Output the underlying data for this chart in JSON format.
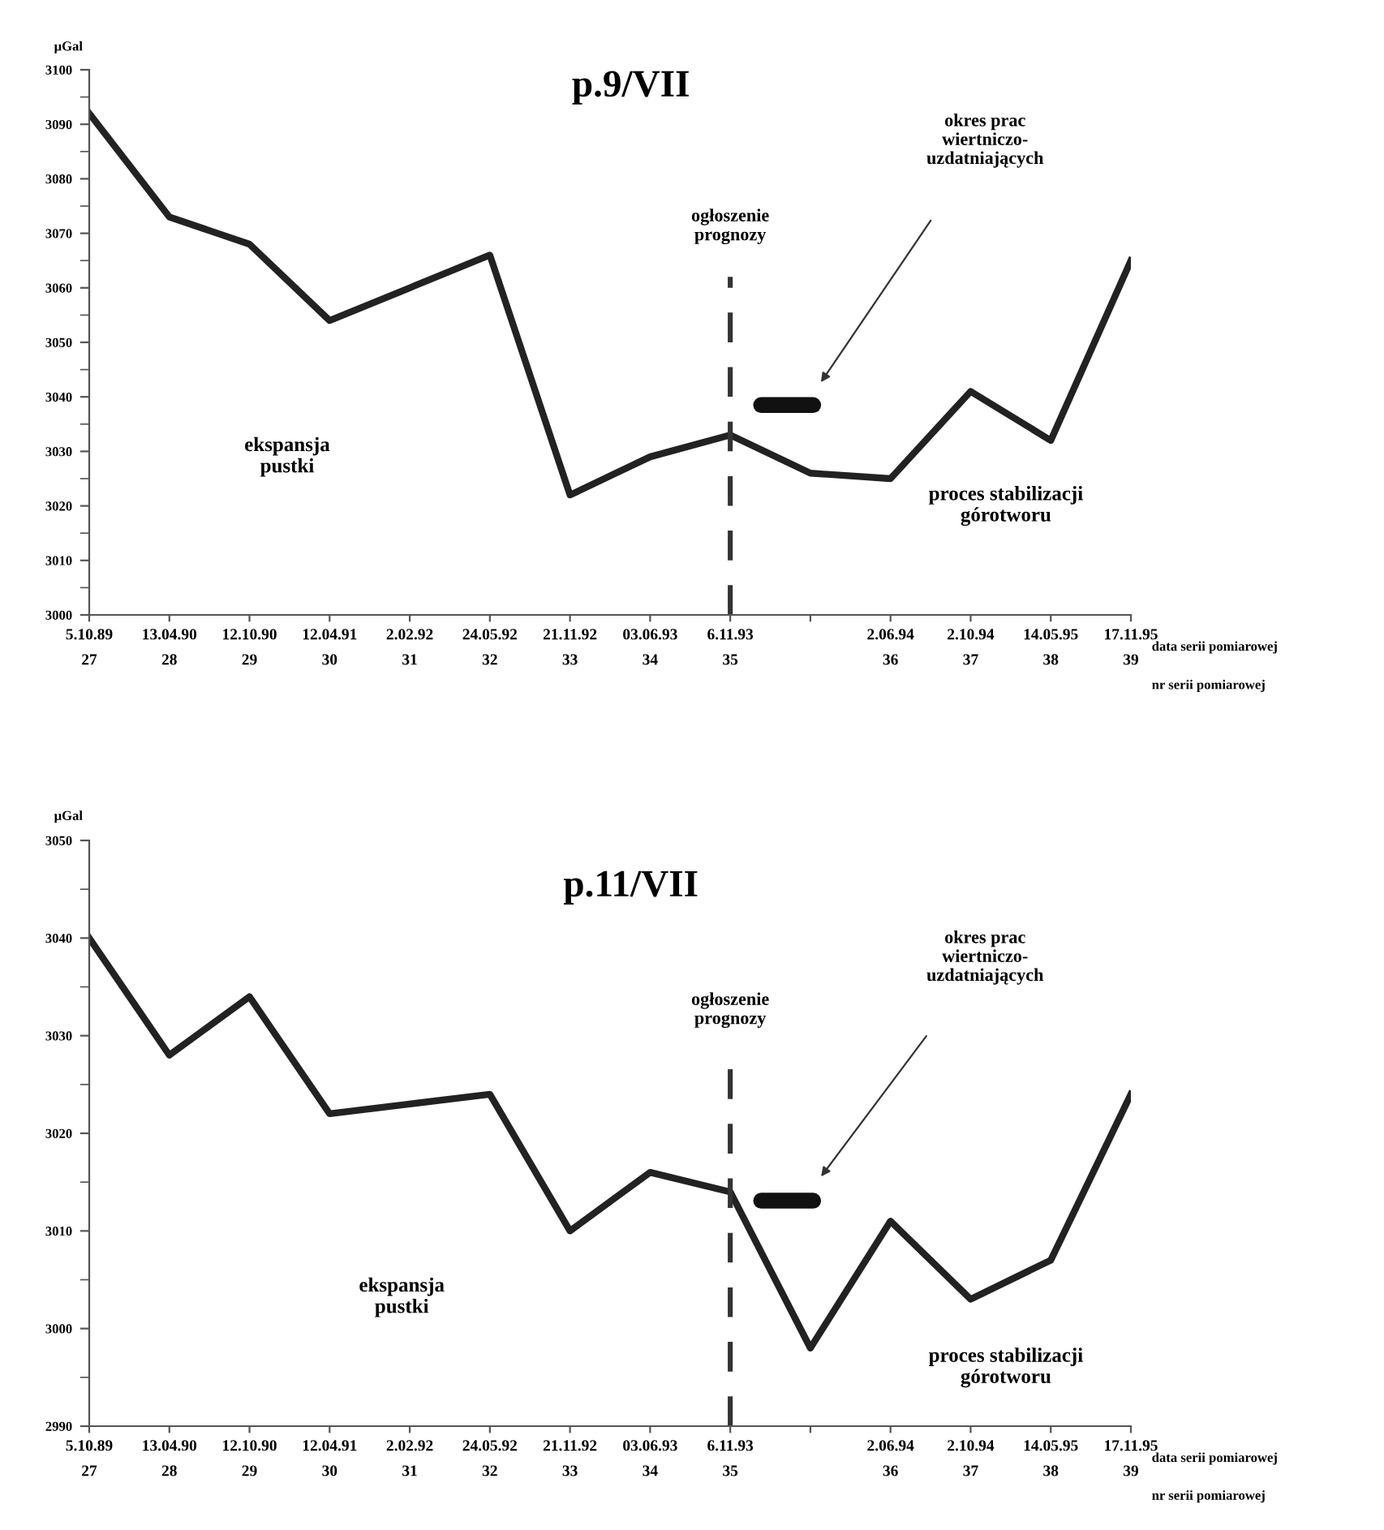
{
  "chart_data": [
    {
      "type": "line",
      "title": "p.9/VII",
      "ylabel": "μGal",
      "xlabel": "data serii pomiarowej",
      "categories": [
        "5.10.89\n27",
        "13.04.90\n28",
        "12.10.90\n29",
        "12.04.91\n30",
        "2.02.92\n31",
        "24.05.92\n32",
        "21.11.92\n33",
        "03.06.93\n34",
        "6.11.93\n35",
        null,
        "2.06.94\n36",
        "2.10.94\n37",
        "14.05.95\n38",
        "17.11.95\n39"
      ],
      "ylim": [
        3000,
        3100
      ],
      "yticks": [
        3000,
        3010,
        3020,
        3030,
        3040,
        3050,
        3060,
        3070,
        3080,
        3090,
        3100
      ],
      "grid": false,
      "legend": false,
      "marker": "none",
      "line_style": "solid",
      "series": [
        {
          "color": "#222222",
          "values": [
            3092,
            3073,
            3068,
            3054,
            3060,
            3066,
            3022,
            3029,
            3033,
            3026,
            3025,
            3041,
            3032,
            3065
          ]
        }
      ],
      "ref_lines": [
        {
          "axis": "x",
          "value": "6.11.93\n35",
          "label": "ogłoszenie\nprognozy",
          "line_style": "dashed",
          "color": "#333333"
        }
      ],
      "annotations": [
        "okres prac\nwiertniczo-\nuzdatniających",
        "ekspansja\npustki",
        "proces stabilizacji\ngórotworu",
        "nr serii pomiarowej"
      ]
    },
    {
      "type": "line",
      "title": "p.11/VII",
      "ylabel": "μGal",
      "xlabel": "data serii pomiarowej",
      "categories": [
        "5.10.89\n27",
        "13.04.90\n28",
        "12.10.90\n29",
        "12.04.91\n30",
        "2.02.92\n31",
        "24.05.92\n32",
        "21.11.92\n33",
        "03.06.93\n34",
        "6.11.93\n35",
        null,
        "2.06.94\n36",
        "2.10.94\n37",
        "14.05.95\n38",
        "17.11.95\n39"
      ],
      "ylim": [
        2990,
        3050
      ],
      "yticks": [
        2990,
        3000,
        3010,
        3020,
        3030,
        3040,
        3050
      ],
      "grid": false,
      "legend": false,
      "marker": "none",
      "line_style": "solid",
      "series": [
        {
          "color": "#222222",
          "values": [
            3040,
            3028,
            3034,
            3022,
            3023,
            3024,
            3010,
            3016,
            3014,
            2998,
            3011,
            3003,
            3007,
            3024
          ]
        }
      ],
      "ref_lines": [
        {
          "axis": "x",
          "value": "6.11.93\n35",
          "label": "ogłoszenie\nprognozy",
          "line_style": "dashed",
          "color": "#333333"
        }
      ],
      "annotations": [
        "okres prac\nwiertniczo-\nuzdatniających",
        "ekspansja\npustki",
        "proces stabilizacji\ngórotworu",
        "nr serii pomiarowej"
      ]
    }
  ]
}
